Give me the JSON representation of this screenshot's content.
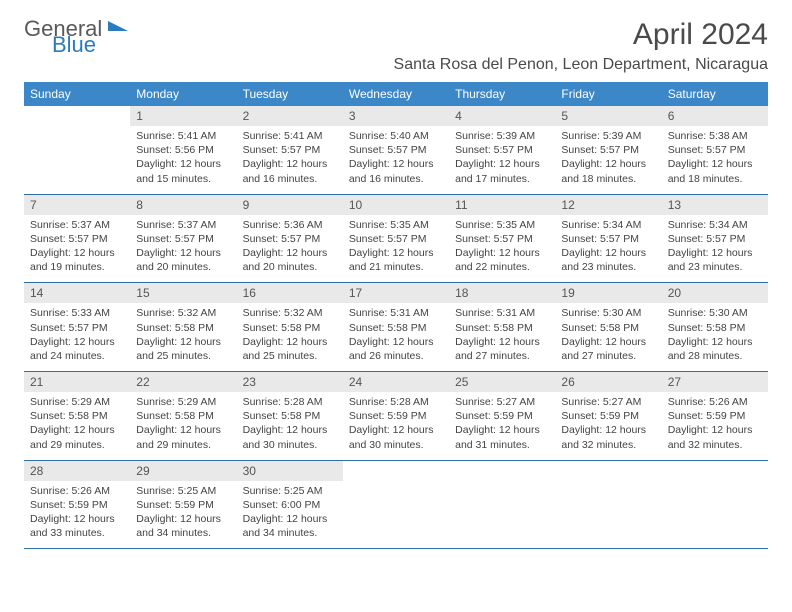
{
  "logo": {
    "text1": "General",
    "text2": "Blue"
  },
  "title": "April 2024",
  "location": "Santa Rosa del Penon, Leon Department, Nicaragua",
  "colors": {
    "header_bg": "#3b87c8",
    "daynum_bg": "#e9e9e9",
    "row_border": "#2f6fa8",
    "logo_blue": "#2b7bbf",
    "text_gray": "#4a4a4a"
  },
  "dow": [
    "Sunday",
    "Monday",
    "Tuesday",
    "Wednesday",
    "Thursday",
    "Friday",
    "Saturday"
  ],
  "weeks": [
    [
      null,
      {
        "n": "1",
        "sr": "5:41 AM",
        "ss": "5:56 PM",
        "dl": "12 hours and 15 minutes."
      },
      {
        "n": "2",
        "sr": "5:41 AM",
        "ss": "5:57 PM",
        "dl": "12 hours and 16 minutes."
      },
      {
        "n": "3",
        "sr": "5:40 AM",
        "ss": "5:57 PM",
        "dl": "12 hours and 16 minutes."
      },
      {
        "n": "4",
        "sr": "5:39 AM",
        "ss": "5:57 PM",
        "dl": "12 hours and 17 minutes."
      },
      {
        "n": "5",
        "sr": "5:39 AM",
        "ss": "5:57 PM",
        "dl": "12 hours and 18 minutes."
      },
      {
        "n": "6",
        "sr": "5:38 AM",
        "ss": "5:57 PM",
        "dl": "12 hours and 18 minutes."
      }
    ],
    [
      {
        "n": "7",
        "sr": "5:37 AM",
        "ss": "5:57 PM",
        "dl": "12 hours and 19 minutes."
      },
      {
        "n": "8",
        "sr": "5:37 AM",
        "ss": "5:57 PM",
        "dl": "12 hours and 20 minutes."
      },
      {
        "n": "9",
        "sr": "5:36 AM",
        "ss": "5:57 PM",
        "dl": "12 hours and 20 minutes."
      },
      {
        "n": "10",
        "sr": "5:35 AM",
        "ss": "5:57 PM",
        "dl": "12 hours and 21 minutes."
      },
      {
        "n": "11",
        "sr": "5:35 AM",
        "ss": "5:57 PM",
        "dl": "12 hours and 22 minutes."
      },
      {
        "n": "12",
        "sr": "5:34 AM",
        "ss": "5:57 PM",
        "dl": "12 hours and 23 minutes."
      },
      {
        "n": "13",
        "sr": "5:34 AM",
        "ss": "5:57 PM",
        "dl": "12 hours and 23 minutes."
      }
    ],
    [
      {
        "n": "14",
        "sr": "5:33 AM",
        "ss": "5:57 PM",
        "dl": "12 hours and 24 minutes."
      },
      {
        "n": "15",
        "sr": "5:32 AM",
        "ss": "5:58 PM",
        "dl": "12 hours and 25 minutes."
      },
      {
        "n": "16",
        "sr": "5:32 AM",
        "ss": "5:58 PM",
        "dl": "12 hours and 25 minutes."
      },
      {
        "n": "17",
        "sr": "5:31 AM",
        "ss": "5:58 PM",
        "dl": "12 hours and 26 minutes."
      },
      {
        "n": "18",
        "sr": "5:31 AM",
        "ss": "5:58 PM",
        "dl": "12 hours and 27 minutes."
      },
      {
        "n": "19",
        "sr": "5:30 AM",
        "ss": "5:58 PM",
        "dl": "12 hours and 27 minutes."
      },
      {
        "n": "20",
        "sr": "5:30 AM",
        "ss": "5:58 PM",
        "dl": "12 hours and 28 minutes."
      }
    ],
    [
      {
        "n": "21",
        "sr": "5:29 AM",
        "ss": "5:58 PM",
        "dl": "12 hours and 29 minutes."
      },
      {
        "n": "22",
        "sr": "5:29 AM",
        "ss": "5:58 PM",
        "dl": "12 hours and 29 minutes."
      },
      {
        "n": "23",
        "sr": "5:28 AM",
        "ss": "5:58 PM",
        "dl": "12 hours and 30 minutes."
      },
      {
        "n": "24",
        "sr": "5:28 AM",
        "ss": "5:59 PM",
        "dl": "12 hours and 30 minutes."
      },
      {
        "n": "25",
        "sr": "5:27 AM",
        "ss": "5:59 PM",
        "dl": "12 hours and 31 minutes."
      },
      {
        "n": "26",
        "sr": "5:27 AM",
        "ss": "5:59 PM",
        "dl": "12 hours and 32 minutes."
      },
      {
        "n": "27",
        "sr": "5:26 AM",
        "ss": "5:59 PM",
        "dl": "12 hours and 32 minutes."
      }
    ],
    [
      {
        "n": "28",
        "sr": "5:26 AM",
        "ss": "5:59 PM",
        "dl": "12 hours and 33 minutes."
      },
      {
        "n": "29",
        "sr": "5:25 AM",
        "ss": "5:59 PM",
        "dl": "12 hours and 34 minutes."
      },
      {
        "n": "30",
        "sr": "5:25 AM",
        "ss": "6:00 PM",
        "dl": "12 hours and 34 minutes."
      },
      null,
      null,
      null,
      null
    ]
  ]
}
